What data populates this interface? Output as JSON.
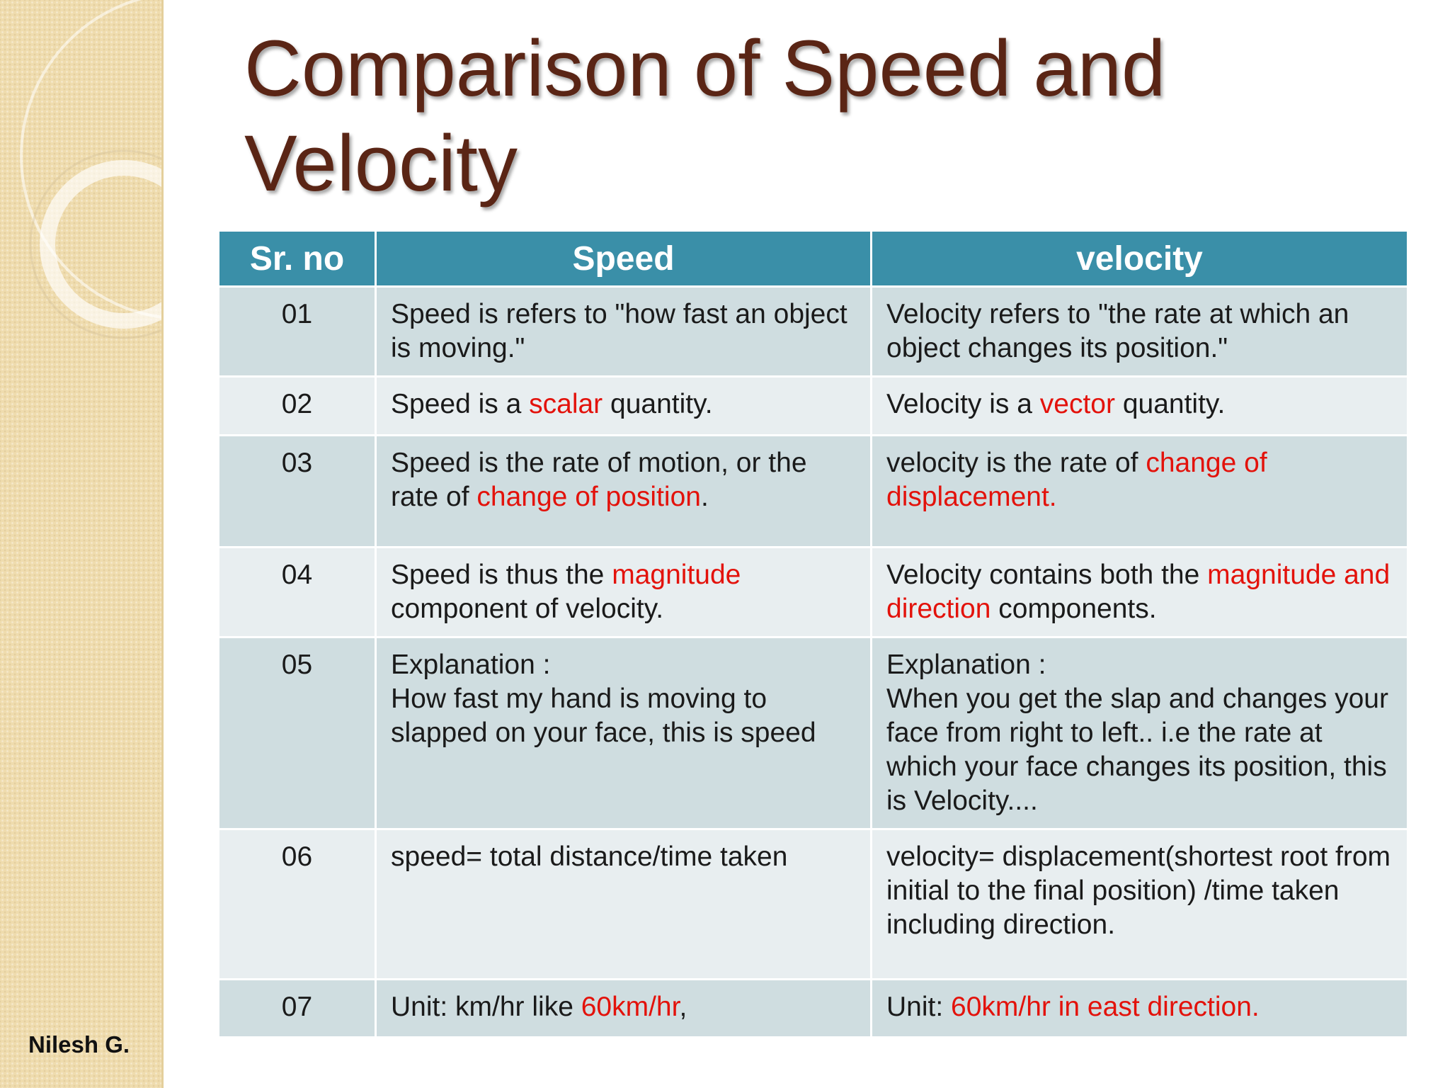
{
  "slide": {
    "title": "Comparison of Speed and Velocity",
    "author": "Nilesh G."
  },
  "colors": {
    "title": "#5a2515",
    "header_bg": "#3a8fa8",
    "row_dark": "#cfdde0",
    "row_light": "#e8eef0",
    "highlight": "#e3120b",
    "side_strip": "#efdcae"
  },
  "table": {
    "headers": [
      "Sr. no",
      "Speed",
      "velocity"
    ],
    "rows": [
      {
        "sr": "01",
        "speed": [
          "Speed is refers to \"how fast an object is moving.\""
        ],
        "velocity": [
          "Velocity refers to \"the rate at which an object changes its position.\""
        ]
      },
      {
        "sr": "02",
        "speed": [
          "Speed is a ",
          "scalar",
          " quantity."
        ],
        "velocity": [
          "Velocity  is a ",
          "vector",
          " quantity."
        ]
      },
      {
        "sr": "03",
        "speed": [
          "Speed is the rate of motion, or the rate of ",
          "change of position",
          "."
        ],
        "velocity": [
          "velocity is the rate of ",
          "change of displacement."
        ]
      },
      {
        "sr": "04",
        "speed": [
          "Speed is thus the ",
          "magnitude",
          " component of velocity."
        ],
        "velocity": [
          "Velocity contains both the ",
          "magnitude and direction",
          " components."
        ]
      },
      {
        "sr": "05",
        "speed": [
          "Explanation :",
          "How fast my hand is moving to slapped on your face, this is speed"
        ],
        "velocity": [
          "Explanation :",
          "When you get the slap and changes your face from right to left.. i.e the rate at which your face changes its position, this is Velocity...."
        ]
      },
      {
        "sr": "06",
        "speed": [
          "speed= total distance/time taken"
        ],
        "velocity": [
          "velocity= displacement(shortest root from initial to the final position) /time taken",
          "including direction."
        ]
      },
      {
        "sr": "07",
        "speed": [
          "Unit:  km/hr like ",
          "60km/hr",
          ","
        ],
        "velocity": [
          "Unit: ",
          "60km/hr in east direction."
        ]
      }
    ]
  }
}
